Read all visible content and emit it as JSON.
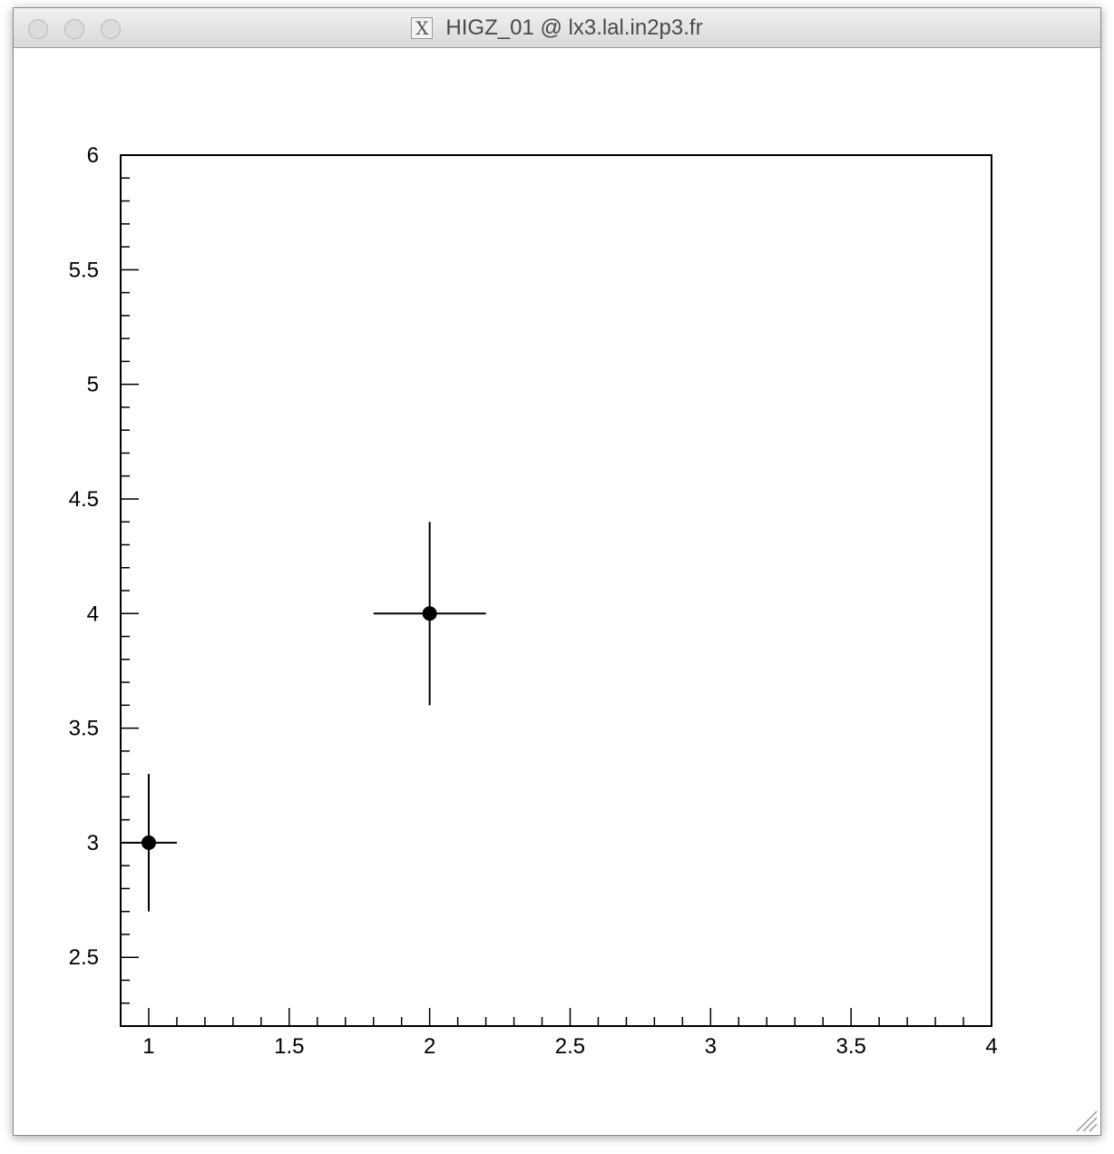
{
  "window": {
    "title": "HIGZ_01 @ lx3.lal.in2p3.fr",
    "app_icon": "x11-icon"
  },
  "chart_data": {
    "type": "scatter",
    "title": "",
    "xlabel": "",
    "ylabel": "",
    "xlim": [
      0.9,
      4.0
    ],
    "ylim": [
      2.2,
      6.0
    ],
    "x_ticks": [
      {
        "value": 1,
        "label": "1"
      },
      {
        "value": 1.5,
        "label": "1.5"
      },
      {
        "value": 2,
        "label": "2"
      },
      {
        "value": 2.5,
        "label": "2.5"
      },
      {
        "value": 3,
        "label": "3"
      },
      {
        "value": 3.5,
        "label": "3.5"
      },
      {
        "value": 4,
        "label": "4"
      }
    ],
    "y_ticks": [
      {
        "value": 2.5,
        "label": "2.5"
      },
      {
        "value": 3,
        "label": "3"
      },
      {
        "value": 3.5,
        "label": "3.5"
      },
      {
        "value": 4,
        "label": "4"
      },
      {
        "value": 4.5,
        "label": "4.5"
      },
      {
        "value": 5,
        "label": "5"
      },
      {
        "value": 5.5,
        "label": "5.5"
      },
      {
        "value": 6,
        "label": "6"
      }
    ],
    "x_minor_step": 0.1,
    "y_minor_step": 0.1,
    "grid": false,
    "points": [
      {
        "x": 1,
        "y": 3,
        "xerr_low": 0.1,
        "xerr_high": 0.1,
        "yerr_low": 0.3,
        "yerr_high": 0.3
      },
      {
        "x": 2,
        "y": 4,
        "xerr_low": 0.2,
        "xerr_high": 0.2,
        "yerr_low": 0.4,
        "yerr_high": 0.4
      }
    ],
    "marker_color": "#000000"
  }
}
